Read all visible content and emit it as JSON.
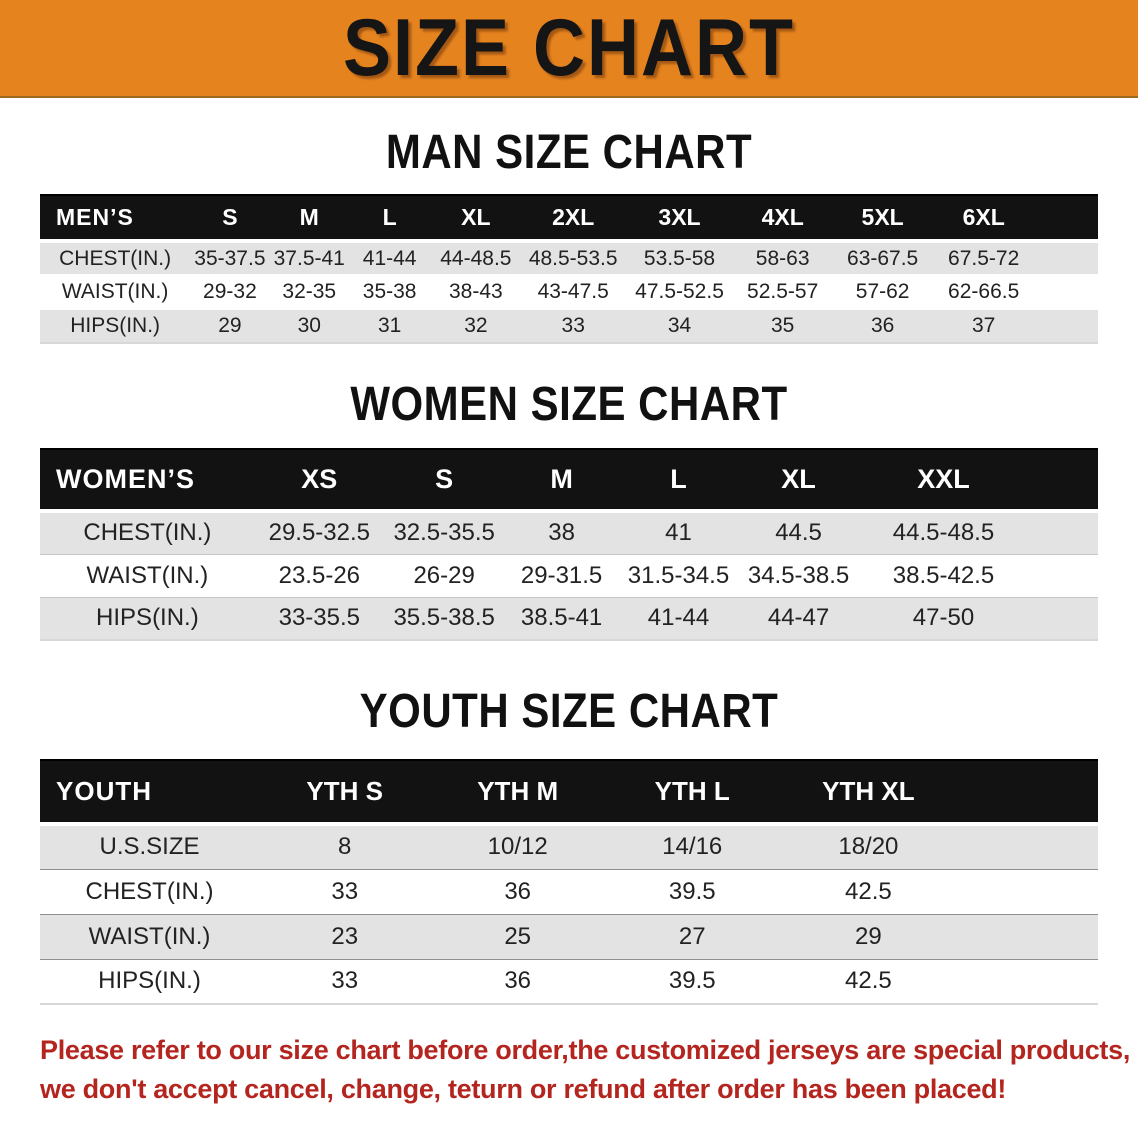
{
  "banner": {
    "title": "SIZE CHART",
    "bg_color": "#E5831F",
    "text_color": "#151515"
  },
  "sections": {
    "men": {
      "heading": "MAN SIZE CHART",
      "header_label": "MEN’S",
      "columns": [
        "S",
        "M",
        "L",
        "XL",
        "2XL",
        "3XL",
        "4XL",
        "5XL",
        "6XL"
      ],
      "rows": [
        {
          "label": "CHEST(IN.)",
          "values": [
            "35-37.5",
            "37.5-41",
            "41-44",
            "44-48.5",
            "48.5-53.5",
            "53.5-58",
            "58-63",
            "63-67.5",
            "67.5-72"
          ]
        },
        {
          "label": "WAIST(IN.)",
          "values": [
            "29-32",
            "32-35",
            "35-38",
            "38-43",
            "43-47.5",
            "47.5-52.5",
            "52.5-57",
            "57-62",
            "62-66.5"
          ]
        },
        {
          "label": "HIPS(IN.)",
          "values": [
            "29",
            "30",
            "31",
            "32",
            "33",
            "34",
            "35",
            "36",
            "37"
          ]
        }
      ]
    },
    "women": {
      "heading": "WOMEN SIZE CHART",
      "header_label": "WOMEN’S",
      "columns": [
        "XS",
        "S",
        "M",
        "L",
        "XL",
        "XXL"
      ],
      "rows": [
        {
          "label": "CHEST(IN.)",
          "values": [
            "29.5-32.5",
            "32.5-35.5",
            "38",
            "41",
            "44.5",
            "44.5-48.5"
          ]
        },
        {
          "label": "WAIST(IN.)",
          "values": [
            "23.5-26",
            "26-29",
            "29-31.5",
            "31.5-34.5",
            "34.5-38.5",
            "38.5-42.5"
          ]
        },
        {
          "label": "HIPS(IN.)",
          "values": [
            "33-35.5",
            "35.5-38.5",
            "38.5-41",
            "41-44",
            "44-47",
            "47-50"
          ]
        }
      ]
    },
    "youth": {
      "heading": "YOUTH SIZE CHART",
      "header_label": "YOUTH",
      "columns": [
        "YTH S",
        "YTH M",
        "YTH L",
        "YTH XL"
      ],
      "rows": [
        {
          "label": "U.S.SIZE",
          "values": [
            "8",
            "10/12",
            "14/16",
            "18/20"
          ]
        },
        {
          "label": "CHEST(IN.)",
          "values": [
            "33",
            "36",
            "39.5",
            "42.5"
          ]
        },
        {
          "label": "WAIST(IN.)",
          "values": [
            "23",
            "25",
            "27",
            "29"
          ]
        },
        {
          "label": "HIPS(IN.)",
          "values": [
            "33",
            "36",
            "39.5",
            "42.5"
          ]
        }
      ]
    }
  },
  "footnote": {
    "line1": "Please refer to our size chart before order,the customized jerseys are special products,",
    "line2": "we don't accept cancel, change, teturn or refund after order has been placed!",
    "color": "#B3251E"
  }
}
